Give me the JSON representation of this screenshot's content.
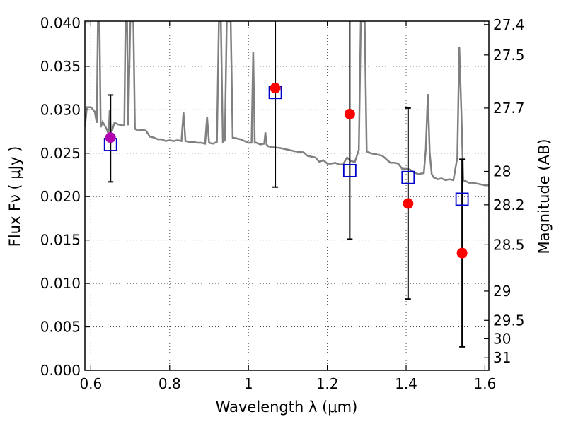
{
  "chart_data": {
    "type": "scatter",
    "xlabel": "Wavelength  λ (μm)",
    "ylabel": "Flux  Fν  ( μJy )",
    "y2label": "Magnitude (AB)",
    "xlim": [
      0.585,
      1.61
    ],
    "ylim": [
      0.0,
      0.0402
    ],
    "xticks": [
      {
        "value": 0.6,
        "label": "0.6"
      },
      {
        "value": 0.8,
        "label": "0.8"
      },
      {
        "value": 1.0,
        "label": "1"
      },
      {
        "value": 1.2,
        "label": "1.2"
      },
      {
        "value": 1.4,
        "label": "1.4"
      },
      {
        "value": 1.6,
        "label": "1.6"
      }
    ],
    "yticks": [
      {
        "value": 0.0,
        "label": "0.000"
      },
      {
        "value": 0.005,
        "label": "0.005"
      },
      {
        "value": 0.01,
        "label": "0.010"
      },
      {
        "value": 0.015,
        "label": "0.015"
      },
      {
        "value": 0.02,
        "label": "0.020"
      },
      {
        "value": 0.025,
        "label": "0.025"
      },
      {
        "value": 0.03,
        "label": "0.030"
      },
      {
        "value": 0.035,
        "label": "0.035"
      },
      {
        "value": 0.04,
        "label": "0.040"
      }
    ],
    "y2ticks": [
      {
        "label": "27.4"
      },
      {
        "label": "27.5"
      },
      {
        "label": "27.7"
      },
      {
        "label": "28"
      },
      {
        "label": "28.2"
      },
      {
        "label": "28.5"
      },
      {
        "label": "29"
      },
      {
        "label": "29.5"
      },
      {
        "label": "30"
      },
      {
        "label": "31"
      }
    ],
    "grid": true,
    "colors": {
      "template": "#808080",
      "observed": "#ff0000",
      "first_point": "#b000b0",
      "model": "#0000cc",
      "errorbar": "#000000"
    },
    "template_spectrum": [
      [
        0.585,
        0.028
      ],
      [
        0.59,
        0.0303
      ],
      [
        0.6,
        0.0303
      ],
      [
        0.61,
        0.0298
      ],
      [
        0.615,
        0.0285
      ],
      [
        0.618,
        0.0402
      ],
      [
        0.622,
        0.0402
      ],
      [
        0.625,
        0.028
      ],
      [
        0.63,
        0.0286
      ],
      [
        0.64,
        0.0278
      ],
      [
        0.645,
        0.0272
      ],
      [
        0.648,
        0.03
      ],
      [
        0.651,
        0.0272
      ],
      [
        0.66,
        0.0285
      ],
      [
        0.67,
        0.0283
      ],
      [
        0.68,
        0.0282
      ],
      [
        0.685,
        0.0282
      ],
      [
        0.688,
        0.0402
      ],
      [
        0.692,
        0.0402
      ],
      [
        0.695,
        0.0282
      ],
      [
        0.7,
        0.0402
      ],
      [
        0.705,
        0.0402
      ],
      [
        0.708,
        0.0402
      ],
      [
        0.712,
        0.0278
      ],
      [
        0.72,
        0.0276
      ],
      [
        0.73,
        0.0277
      ],
      [
        0.74,
        0.0276
      ],
      [
        0.75,
        0.0269
      ],
      [
        0.76,
        0.0268
      ],
      [
        0.77,
        0.0266
      ],
      [
        0.78,
        0.0266
      ],
      [
        0.79,
        0.0264
      ],
      [
        0.8,
        0.0265
      ],
      [
        0.81,
        0.0264
      ],
      [
        0.82,
        0.0265
      ],
      [
        0.83,
        0.0264
      ],
      [
        0.835,
        0.0297
      ],
      [
        0.84,
        0.0264
      ],
      [
        0.85,
        0.0263
      ],
      [
        0.86,
        0.0263
      ],
      [
        0.87,
        0.0262
      ],
      [
        0.88,
        0.0262
      ],
      [
        0.89,
        0.0261
      ],
      [
        0.895,
        0.0292
      ],
      [
        0.9,
        0.0262
      ],
      [
        0.91,
        0.0261
      ],
      [
        0.92,
        0.0263
      ],
      [
        0.925,
        0.0402
      ],
      [
        0.93,
        0.0402
      ],
      [
        0.935,
        0.0263
      ],
      [
        0.94,
        0.0265
      ],
      [
        0.945,
        0.0402
      ],
      [
        0.95,
        0.0402
      ],
      [
        0.955,
        0.0402
      ],
      [
        0.96,
        0.0268
      ],
      [
        0.97,
        0.0267
      ],
      [
        0.98,
        0.0266
      ],
      [
        0.99,
        0.0264
      ],
      [
        1.0,
        0.0262
      ],
      [
        1.008,
        0.0262
      ],
      [
        1.012,
        0.0367
      ],
      [
        1.016,
        0.0262
      ],
      [
        1.02,
        0.0262
      ],
      [
        1.03,
        0.026
      ],
      [
        1.04,
        0.0261
      ],
      [
        1.043,
        0.0274
      ],
      [
        1.046,
        0.026
      ],
      [
        1.05,
        0.0258
      ],
      [
        1.06,
        0.0257
      ],
      [
        1.08,
        0.0256
      ],
      [
        1.1,
        0.0254
      ],
      [
        1.12,
        0.0252
      ],
      [
        1.14,
        0.0251
      ],
      [
        1.15,
        0.0247
      ],
      [
        1.16,
        0.0246
      ],
      [
        1.17,
        0.0245
      ],
      [
        1.18,
        0.024
      ],
      [
        1.19,
        0.0242
      ],
      [
        1.2,
        0.0238
      ],
      [
        1.21,
        0.0238
      ],
      [
        1.22,
        0.0239
      ],
      [
        1.23,
        0.0237
      ],
      [
        1.24,
        0.0237
      ],
      [
        1.25,
        0.0245
      ],
      [
        1.26,
        0.0241
      ],
      [
        1.27,
        0.024
      ],
      [
        1.275,
        0.0247
      ],
      [
        1.28,
        0.0254
      ],
      [
        1.285,
        0.0402
      ],
      [
        1.29,
        0.0402
      ],
      [
        1.295,
        0.0402
      ],
      [
        1.3,
        0.0252
      ],
      [
        1.31,
        0.025
      ],
      [
        1.32,
        0.0249
      ],
      [
        1.33,
        0.0248
      ],
      [
        1.34,
        0.0247
      ],
      [
        1.35,
        0.0243
      ],
      [
        1.36,
        0.0239
      ],
      [
        1.37,
        0.0239
      ],
      [
        1.38,
        0.0238
      ],
      [
        1.39,
        0.0232
      ],
      [
        1.4,
        0.0232
      ],
      [
        1.41,
        0.0231
      ],
      [
        1.42,
        0.0228
      ],
      [
        1.43,
        0.0226
      ],
      [
        1.445,
        0.0227
      ],
      [
        1.45,
        0.0255
      ],
      [
        1.455,
        0.0318
      ],
      [
        1.46,
        0.025
      ],
      [
        1.465,
        0.0226
      ],
      [
        1.47,
        0.0222
      ],
      [
        1.48,
        0.022
      ],
      [
        1.49,
        0.0221
      ],
      [
        1.5,
        0.0219
      ],
      [
        1.51,
        0.022
      ],
      [
        1.52,
        0.0219
      ],
      [
        1.53,
        0.0245
      ],
      [
        1.535,
        0.0372
      ],
      [
        1.54,
        0.03
      ],
      [
        1.545,
        0.0218
      ],
      [
        1.55,
        0.0218
      ],
      [
        1.56,
        0.0216
      ],
      [
        1.57,
        0.0216
      ],
      [
        1.58,
        0.0215
      ],
      [
        1.59,
        0.0214
      ],
      [
        1.6,
        0.0213
      ],
      [
        1.61,
        0.0213
      ]
    ],
    "observed": [
      {
        "x": 0.65,
        "y": 0.0268,
        "yerr_low": 0.0217,
        "yerr_high": 0.0317
      },
      {
        "x": 1.068,
        "y": 0.0325,
        "yerr_low": 0.0211,
        "yerr_high": 0.0402
      },
      {
        "x": 1.257,
        "y": 0.0295,
        "yerr_low": 0.0151,
        "yerr_high": 0.0402
      },
      {
        "x": 1.405,
        "y": 0.0192,
        "yerr_low": 0.0082,
        "yerr_high": 0.0302
      },
      {
        "x": 1.542,
        "y": 0.0135,
        "yerr_low": 0.0027,
        "yerr_high": 0.0243
      }
    ],
    "model": [
      {
        "x": 0.65,
        "y": 0.026
      },
      {
        "x": 1.068,
        "y": 0.032
      },
      {
        "x": 1.257,
        "y": 0.023
      },
      {
        "x": 1.405,
        "y": 0.0222
      },
      {
        "x": 1.542,
        "y": 0.0197
      }
    ]
  }
}
